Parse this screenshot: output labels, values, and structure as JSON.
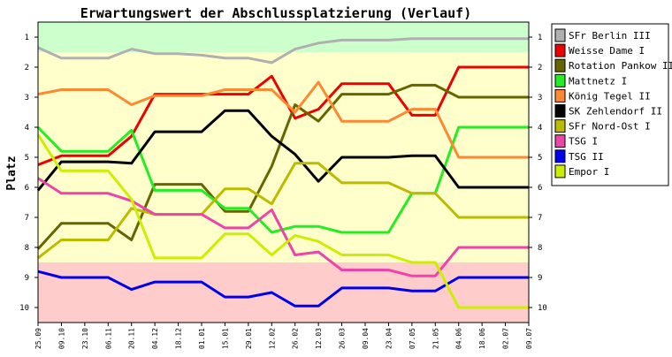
{
  "chart_data": {
    "type": "line",
    "title": "Erwartungswert der Abschlussplatzierung (Verlauf)",
    "xlabel": "",
    "ylabel": "Platz",
    "ylim": [
      0.5,
      10.5
    ],
    "y_reversed": true,
    "yticks": [
      1,
      2,
      3,
      4,
      5,
      6,
      7,
      8,
      9,
      10
    ],
    "x": [
      "25.09",
      "09.10",
      "23.10",
      "06.11",
      "20.11",
      "04.12",
      "18.12",
      "01.01",
      "15.01",
      "29.01",
      "12.02",
      "26.02",
      "12.03",
      "26.03",
      "09.04",
      "23.04",
      "07.05",
      "21.05",
      "04.06",
      "18.06",
      "02.07",
      "09.07"
    ],
    "legend_position": "right",
    "zones": [
      {
        "from": 0.5,
        "to": 1.5,
        "color": "#ccffcc"
      },
      {
        "from": 1.5,
        "to": 8.5,
        "color": "#ffffcc"
      },
      {
        "from": 8.5,
        "to": 10.5,
        "color": "#ffcccc"
      }
    ],
    "series": [
      {
        "name": "SFr Berlin III",
        "color": "#b0b0b0",
        "values": [
          1.35,
          1.7,
          1.7,
          1.7,
          1.4,
          1.55,
          1.55,
          1.6,
          1.7,
          1.7,
          1.85,
          1.4,
          1.2,
          1.1,
          1.1,
          1.1,
          1.05,
          1.05,
          1.05,
          1.05,
          1.05,
          1.05
        ]
      },
      {
        "name": "Weisse Dame I",
        "color": "#ee0000",
        "values": [
          5.25,
          4.95,
          4.95,
          4.95,
          4.3,
          2.9,
          2.9,
          2.9,
          2.9,
          2.9,
          2.3,
          3.7,
          3.4,
          2.55,
          2.55,
          2.55,
          3.6,
          3.6,
          2.0,
          2.0,
          2.0,
          2.0
        ]
      },
      {
        "name": "Rotation Pankow II",
        "color": "#666600",
        "values": [
          8.05,
          7.2,
          7.2,
          7.2,
          7.75,
          5.9,
          5.9,
          5.9,
          6.8,
          6.8,
          5.3,
          3.25,
          3.8,
          2.9,
          2.9,
          2.9,
          2.6,
          2.6,
          3.0,
          3.0,
          3.0,
          3.0
        ]
      },
      {
        "name": "Mattnetz I",
        "color": "#22ee22",
        "values": [
          4.0,
          4.8,
          4.8,
          4.8,
          4.1,
          6.1,
          6.1,
          6.1,
          6.7,
          6.7,
          7.5,
          7.3,
          7.3,
          7.5,
          7.5,
          7.5,
          6.2,
          6.2,
          4.0,
          4.0,
          4.0,
          4.0
        ]
      },
      {
        "name": "König Tegel II",
        "color": "#ff8833",
        "values": [
          2.9,
          2.75,
          2.75,
          2.75,
          3.25,
          2.95,
          2.95,
          2.95,
          2.75,
          2.75,
          2.75,
          3.5,
          2.5,
          3.8,
          3.8,
          3.8,
          3.4,
          3.4,
          5.0,
          5.0,
          5.0,
          5.0
        ]
      },
      {
        "name": "SK Zehlendorf II",
        "color": "#000000",
        "values": [
          6.1,
          5.15,
          5.15,
          5.15,
          5.2,
          4.15,
          4.15,
          4.15,
          3.45,
          3.45,
          4.3,
          4.9,
          5.8,
          5.0,
          5.0,
          5.0,
          4.95,
          4.95,
          6.0,
          6.0,
          6.0,
          6.0
        ]
      },
      {
        "name": "SFr Nord-Ost I",
        "color": "#bbbb00",
        "values": [
          8.35,
          7.75,
          7.75,
          7.75,
          6.7,
          6.9,
          6.9,
          6.9,
          6.05,
          6.05,
          6.55,
          5.2,
          5.2,
          5.85,
          5.85,
          5.85,
          6.2,
          6.2,
          7.0,
          7.0,
          7.0,
          7.0
        ]
      },
      {
        "name": "TSG I",
        "color": "#ee44aa",
        "values": [
          5.7,
          6.2,
          6.2,
          6.2,
          6.45,
          6.9,
          6.9,
          6.9,
          7.35,
          7.35,
          6.75,
          8.25,
          8.15,
          8.75,
          8.75,
          8.75,
          8.95,
          8.95,
          8.0,
          8.0,
          8.0,
          8.0
        ]
      },
      {
        "name": "TSG II",
        "color": "#0000ee",
        "values": [
          8.8,
          9.0,
          9.0,
          9.0,
          9.4,
          9.15,
          9.15,
          9.15,
          9.65,
          9.65,
          9.5,
          9.95,
          9.95,
          9.35,
          9.35,
          9.35,
          9.45,
          9.45,
          9.0,
          9.0,
          9.0,
          9.0
        ]
      },
      {
        "name": "Empor I",
        "color": "#ccee00",
        "values": [
          4.25,
          5.45,
          5.45,
          5.45,
          6.4,
          8.35,
          8.35,
          8.35,
          7.55,
          7.55,
          8.25,
          7.6,
          7.8,
          8.25,
          8.25,
          8.25,
          8.5,
          8.5,
          10.0,
          10.0,
          10.0,
          10.0
        ]
      }
    ]
  }
}
